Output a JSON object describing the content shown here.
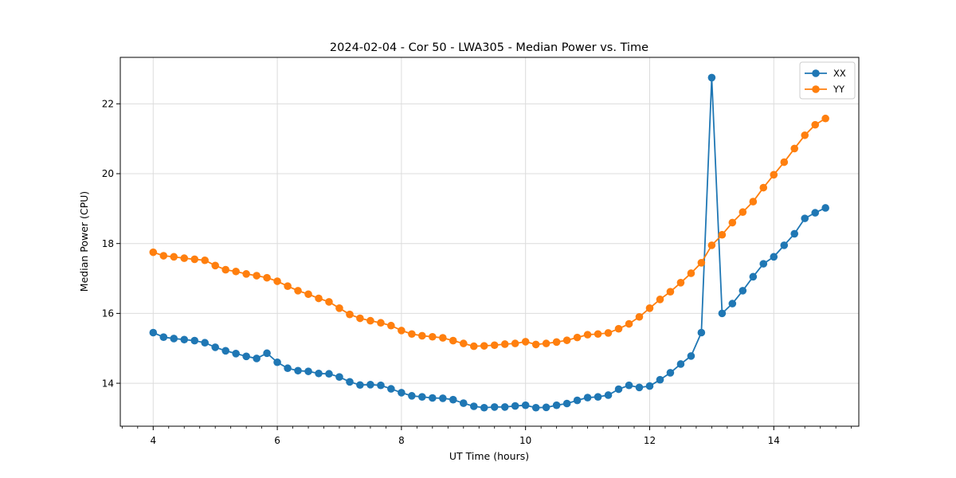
{
  "figure": {
    "background": "#ffffff",
    "title": "2024-02-04 - Cor 50 - LWA305 - Median Power vs. Time"
  },
  "chart_data": {
    "type": "line",
    "title": "2024-02-04 - Cor 50 - LWA305 - Median Power vs. Time",
    "xlabel": "UT Time (hours)",
    "ylabel": "Median Power (CPU)",
    "xlim": [
      3.47,
      15.37
    ],
    "ylim": [
      12.77,
      23.33
    ],
    "x_ticks": [
      4,
      6,
      8,
      10,
      12,
      14
    ],
    "y_ticks": [
      14,
      16,
      18,
      20,
      22
    ],
    "x_minor_step": 0.25,
    "grid": true,
    "grid_color": "#dcdcdc",
    "spine_color": "#000000",
    "legend": {
      "position": "upper right",
      "border_color": "#cccccc",
      "background": "#ffffff"
    },
    "marker": "circle",
    "x": [
      4.0,
      4.167,
      4.333,
      4.5,
      4.667,
      4.833,
      5.0,
      5.167,
      5.333,
      5.5,
      5.667,
      5.833,
      6.0,
      6.167,
      6.333,
      6.5,
      6.667,
      6.833,
      7.0,
      7.167,
      7.333,
      7.5,
      7.667,
      7.833,
      8.0,
      8.167,
      8.333,
      8.5,
      8.667,
      8.833,
      9.0,
      9.167,
      9.333,
      9.5,
      9.667,
      9.833,
      10.0,
      10.167,
      10.333,
      10.5,
      10.667,
      10.833,
      11.0,
      11.167,
      11.333,
      11.5,
      11.667,
      11.833,
      12.0,
      12.167,
      12.333,
      12.5,
      12.667,
      12.833,
      13.0,
      13.167,
      13.333,
      13.5,
      13.667,
      13.833,
      14.0,
      14.167,
      14.333,
      14.5,
      14.667,
      14.833
    ],
    "series": [
      {
        "name": "XX",
        "color": "#1f77b4",
        "values": [
          15.45,
          15.32,
          15.28,
          15.25,
          15.22,
          15.16,
          15.03,
          14.93,
          14.85,
          14.77,
          14.71,
          14.86,
          14.6,
          14.43,
          14.36,
          14.34,
          14.28,
          14.27,
          14.18,
          14.04,
          13.95,
          13.96,
          13.94,
          13.84,
          13.73,
          13.64,
          13.61,
          13.58,
          13.57,
          13.53,
          13.43,
          13.34,
          13.3,
          13.32,
          13.32,
          13.35,
          13.37,
          13.3,
          13.31,
          13.37,
          13.42,
          13.51,
          13.59,
          13.61,
          13.66,
          13.83,
          13.94,
          13.88,
          13.92,
          14.1,
          14.3,
          14.55,
          14.78,
          15.45,
          22.75,
          16.0,
          16.28,
          16.65,
          17.05,
          17.42,
          17.62,
          17.95,
          18.28,
          18.72,
          18.88,
          19.02
        ]
      },
      {
        "name": "YY",
        "color": "#ff7f0e",
        "values": [
          17.75,
          17.65,
          17.62,
          17.58,
          17.55,
          17.52,
          17.37,
          17.25,
          17.2,
          17.13,
          17.08,
          17.02,
          16.92,
          16.78,
          16.65,
          16.55,
          16.43,
          16.33,
          16.15,
          15.97,
          15.86,
          15.79,
          15.73,
          15.65,
          15.51,
          15.41,
          15.36,
          15.33,
          15.3,
          15.22,
          15.14,
          15.06,
          15.07,
          15.09,
          15.12,
          15.14,
          15.19,
          15.11,
          15.14,
          15.18,
          15.23,
          15.31,
          15.39,
          15.41,
          15.44,
          15.56,
          15.7,
          15.9,
          16.15,
          16.4,
          16.62,
          16.88,
          17.15,
          17.45,
          17.95,
          18.25,
          18.6,
          18.9,
          19.2,
          19.6,
          19.97,
          20.33,
          20.72,
          21.1,
          21.4,
          21.58
        ]
      }
    ]
  }
}
